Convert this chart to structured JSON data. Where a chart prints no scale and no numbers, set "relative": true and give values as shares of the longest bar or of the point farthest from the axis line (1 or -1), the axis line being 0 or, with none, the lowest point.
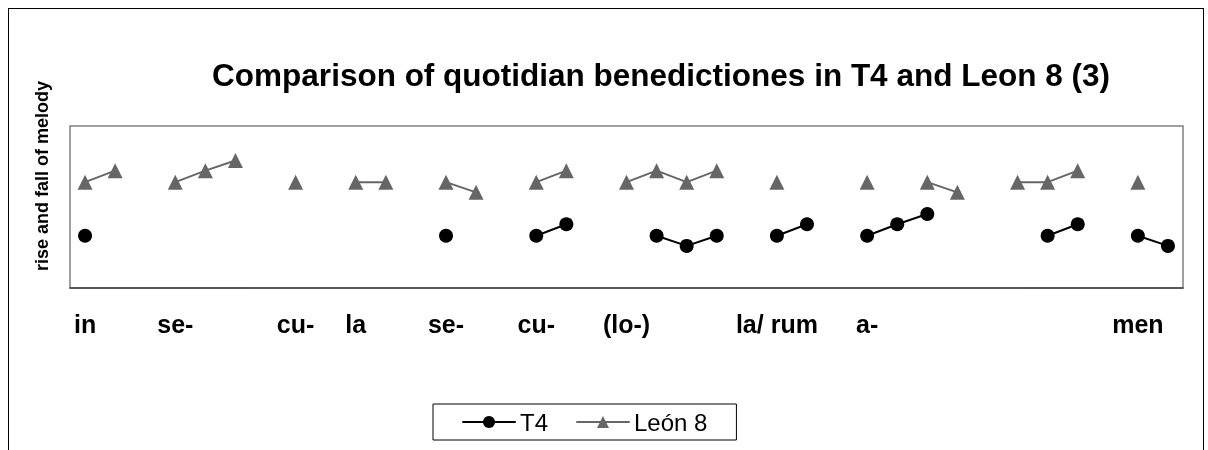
{
  "chart_data": {
    "type": "line",
    "title": "Comparison of quotidian benedictiones in T4 and Leon 8 (3)",
    "ylabel": "rise and fall of melody",
    "relative": true,
    "legend": "bottom",
    "line_style": "solid",
    "categories": [
      "in",
      null,
      null,
      "se-",
      null,
      null,
      null,
      "cu-",
      null,
      "la",
      null,
      null,
      "se-",
      null,
      null,
      "cu-",
      null,
      null,
      "(lo-)",
      null,
      null,
      null,
      null,
      "la/ rum",
      null,
      null,
      "a-",
      null,
      null,
      null,
      null,
      null,
      null,
      null,
      null,
      "men",
      null
    ],
    "series": [
      {
        "name": "T4",
        "color": "#000000",
        "marker": "circle",
        "values": [
          0.41,
          null,
          null,
          null,
          null,
          null,
          null,
          null,
          null,
          null,
          null,
          null,
          0.41,
          null,
          null,
          0.41,
          0.5,
          null,
          null,
          0.41,
          0.33,
          0.41,
          null,
          0.41,
          0.5,
          null,
          0.41,
          0.5,
          0.58,
          null,
          null,
          null,
          0.41,
          0.5,
          null,
          0.41,
          0.33
        ]
      },
      {
        "name": "León 8",
        "color": "#666666",
        "marker": "triangle",
        "values": [
          0.83,
          0.92,
          null,
          0.83,
          0.92,
          1,
          null,
          0.83,
          null,
          0.83,
          0.83,
          null,
          0.83,
          0.75,
          null,
          0.83,
          0.92,
          null,
          0.83,
          0.92,
          0.83,
          0.92,
          null,
          0.83,
          null,
          null,
          0.83,
          null,
          0.83,
          0.75,
          null,
          0.83,
          0.83,
          0.92,
          null,
          0.83,
          null
        ]
      }
    ]
  }
}
